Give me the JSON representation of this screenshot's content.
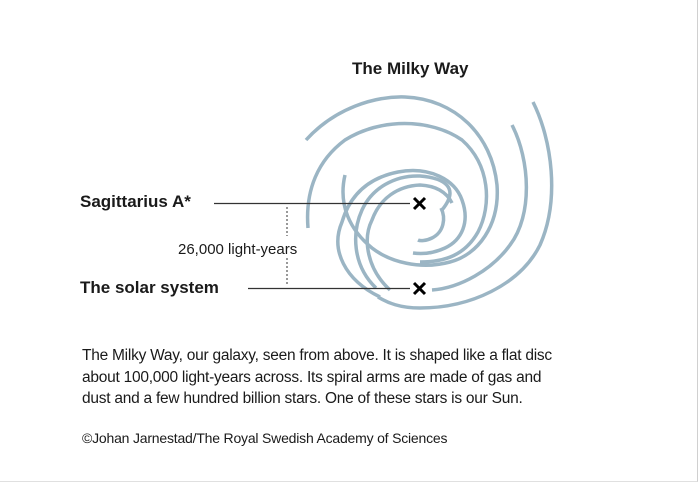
{
  "title": "The Milky Way",
  "labels": {
    "sagittarius": "Sagittarius A*",
    "solar_system": "The solar system",
    "distance": "26,000 light-years"
  },
  "caption": {
    "lines": [
      "The Milky Way, our galaxy, seen from above. It is shaped like a flat disc",
      "about 100,000 light-years across. Its spiral arms are made of gas and",
      "dust and a few hundred billion stars. One of these stars is our Sun."
    ]
  },
  "credit": "©Johan Jarnestad/The Royal Swedish Academy of Sciences",
  "colors": {
    "spiral": "#9bb5c4",
    "text": "#1a1a1a"
  }
}
